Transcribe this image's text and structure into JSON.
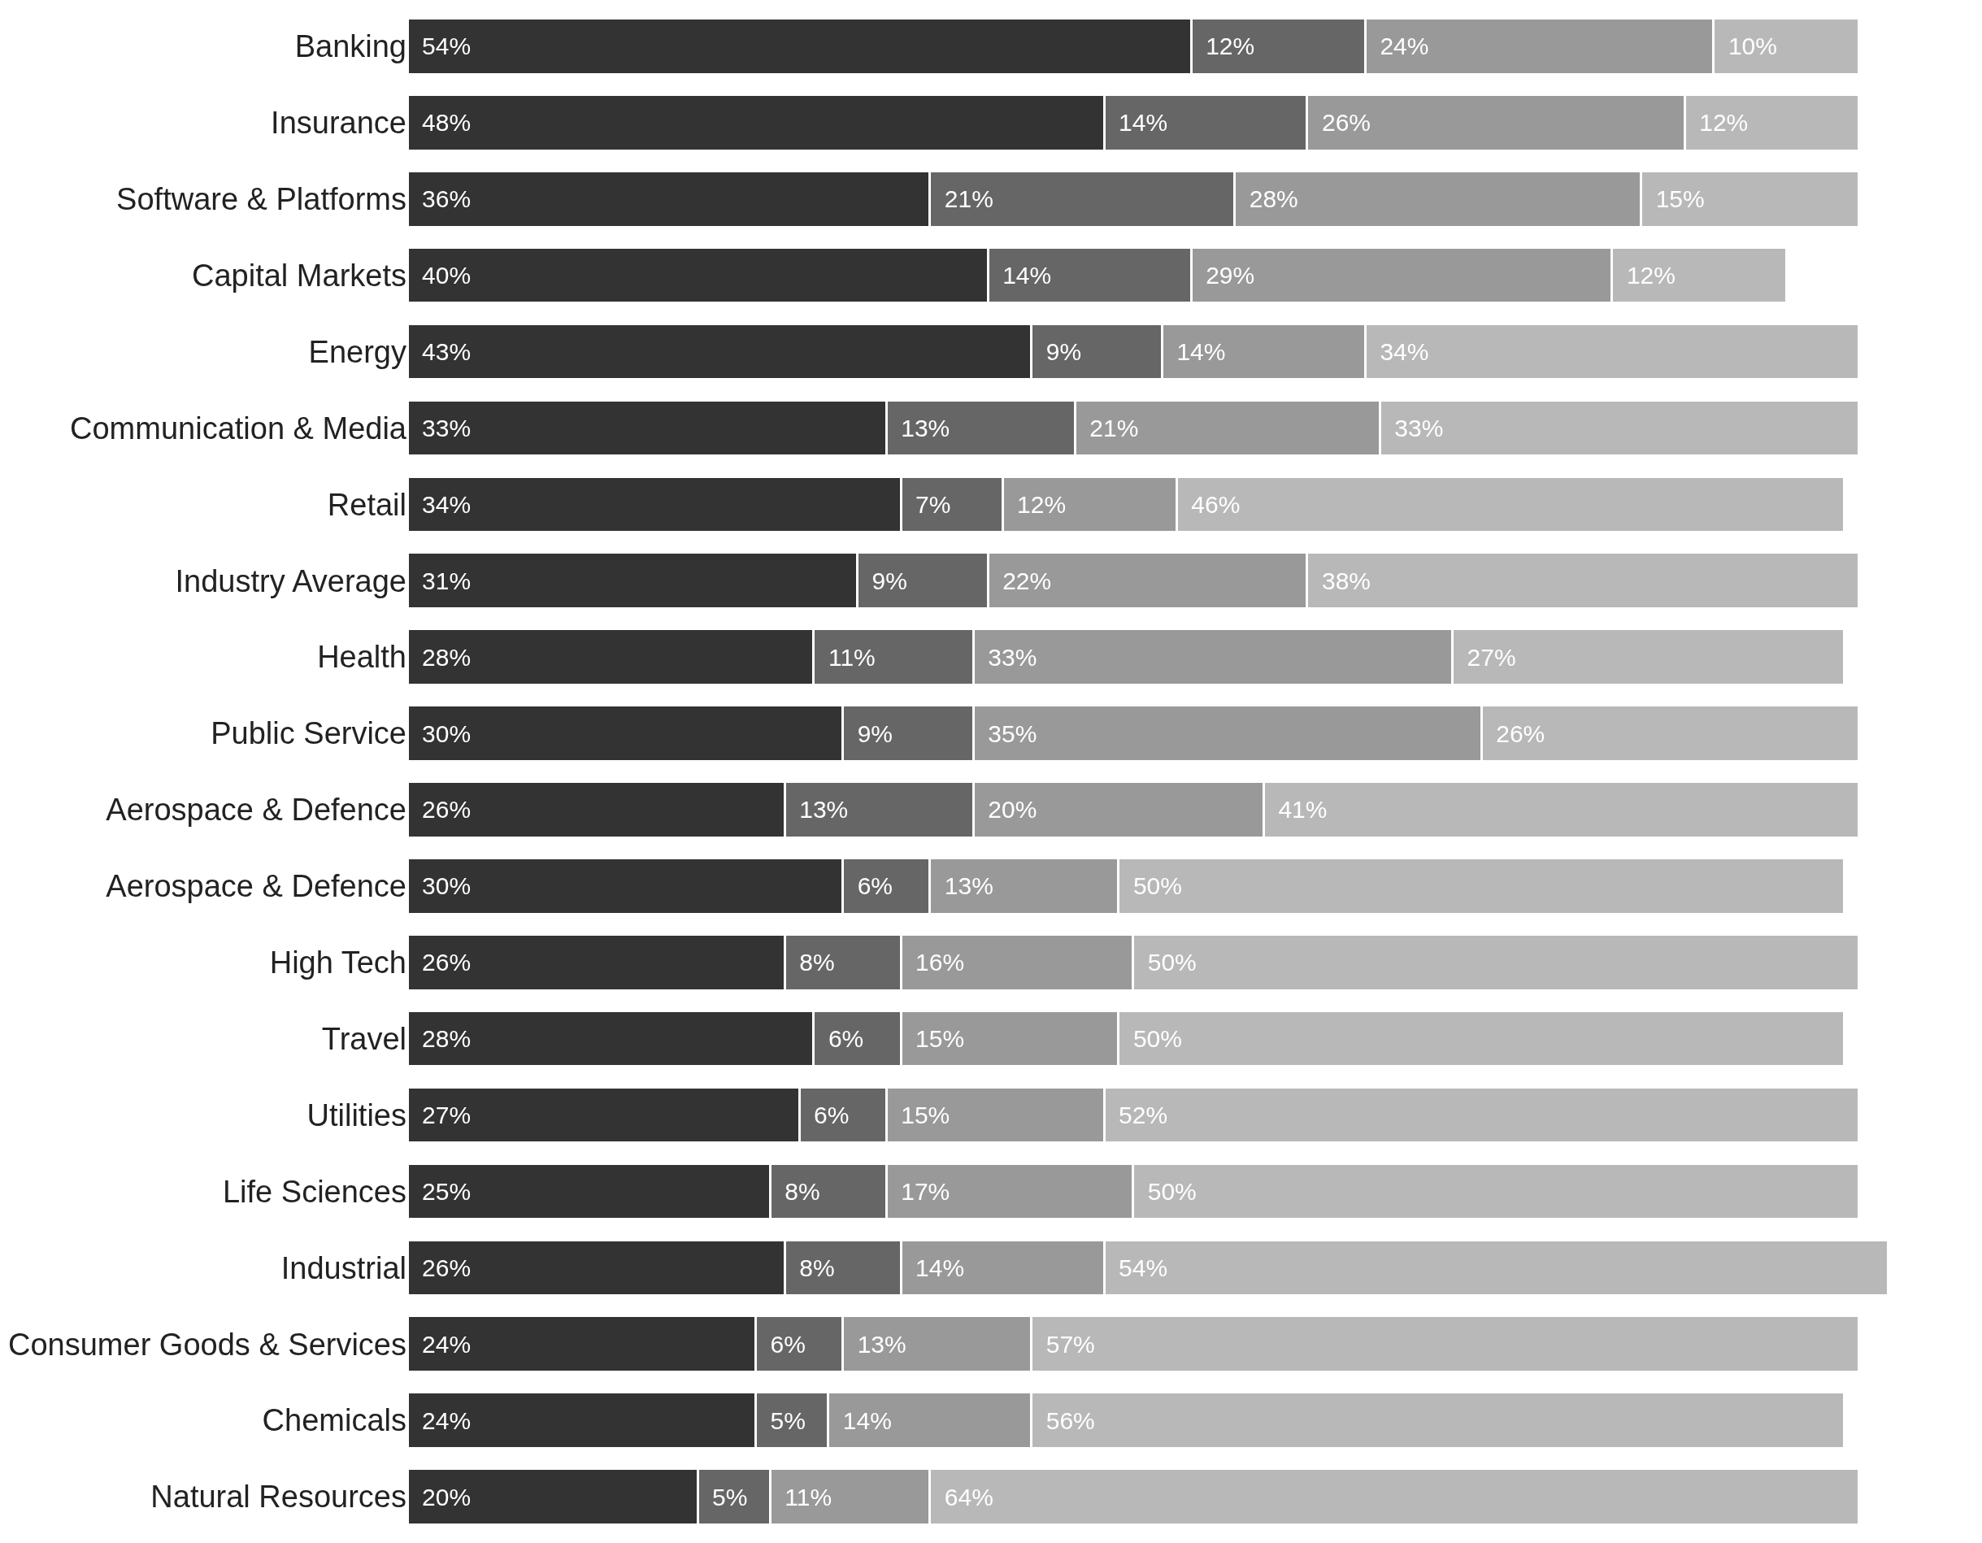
{
  "chart_data": {
    "type": "bar",
    "orientation": "horizontal",
    "stacked": true,
    "tick_labels": "y",
    "categories": [
      "Banking",
      "Insurance",
      "Software & Platforms",
      "Capital Markets",
      "Energy",
      "Communication & Media",
      "Retail",
      "Industry Average",
      "Health",
      "Public Service",
      "Aerospace & Defence",
      "Aerospace & Defence",
      "High Tech",
      "Travel",
      "Utilities",
      "Life Sciences",
      "Industrial",
      "Consumer Goods & Services",
      "Chemicals",
      "Natural Resources"
    ],
    "series": [
      {
        "color": "#333333",
        "values": [
          54,
          48,
          36,
          40,
          43,
          33,
          34,
          31,
          28,
          30,
          26,
          30,
          26,
          28,
          27,
          25,
          26,
          24,
          24,
          20
        ],
        "value_labels": [
          "54%",
          "48%",
          "36%",
          "40%",
          "43%",
          "33%",
          "34%",
          "31%",
          "28%",
          "30%",
          "26%",
          "30%",
          "26%",
          "28%",
          "27%",
          "25%",
          "26%",
          "24%",
          "24%",
          "20%"
        ]
      },
      {
        "color": "#666666",
        "values": [
          12,
          14,
          21,
          14,
          9,
          13,
          7,
          9,
          11,
          9,
          13,
          6,
          8,
          6,
          6,
          8,
          8,
          6,
          5,
          5
        ],
        "value_labels": [
          "12%",
          "14%",
          "21%",
          "14%",
          "9%",
          "13%",
          "7%",
          "9%",
          "11%",
          "9%",
          "13%",
          "6%",
          "8%",
          "6%",
          "6%",
          "8%",
          "8%",
          "6%",
          "5%",
          "5%"
        ]
      },
      {
        "color": "#999999",
        "values": [
          24,
          26,
          28,
          29,
          14,
          21,
          12,
          22,
          33,
          35,
          20,
          13,
          16,
          15,
          15,
          17,
          14,
          13,
          14,
          11
        ],
        "value_labels": [
          "24%",
          "26%",
          "28%",
          "29%",
          "14%",
          "21%",
          "12%",
          "22%",
          "33%",
          "35%",
          "20%",
          "13%",
          "16%",
          "15%",
          "15%",
          "17%",
          "14%",
          "13%",
          "14%",
          "11%"
        ]
      },
      {
        "color": "#b8b8b8",
        "values": [
          10,
          12,
          15,
          12,
          34,
          33,
          46,
          38,
          27,
          26,
          41,
          50,
          50,
          50,
          52,
          50,
          54,
          57,
          56,
          64
        ],
        "value_labels": [
          "10%",
          "12%",
          "15%",
          "12%",
          "34%",
          "33%",
          "46%",
          "38%",
          "27%",
          "26%",
          "41%",
          "50%",
          "50%",
          "50%",
          "52%",
          "50%",
          "54%",
          "57%",
          "56%",
          "64%"
        ]
      }
    ]
  }
}
